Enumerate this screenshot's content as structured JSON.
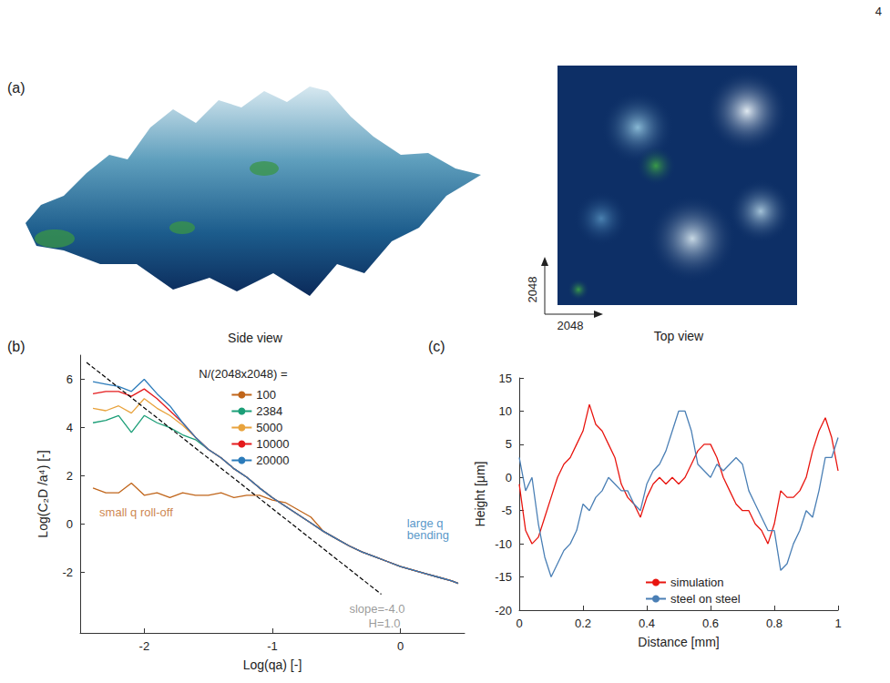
{
  "page_number": "4",
  "panel_a": {
    "panel_label": "(a)",
    "side_view_caption": "Side view",
    "top_view_caption": "Top view",
    "top_view_axes": [
      "2048",
      "2048"
    ]
  },
  "chart_data": [
    {
      "panel_label": "(b)",
      "type": "line",
      "x_label": "Log(qa) [-]",
      "y_label": "Log(C₂D /a⁴) [-]",
      "legend_title": "N/(2048x2048) =",
      "legend": "upper right",
      "grid": false,
      "xlim": [
        -2.5,
        0.5
      ],
      "xticks": [
        -2,
        -1,
        0
      ],
      "ylim": [
        -4.5,
        7
      ],
      "yticks": [
        -2,
        0,
        2,
        4,
        6
      ],
      "x": [
        -2.4,
        -2.3,
        -2.2,
        -2.1,
        -2.0,
        -1.9,
        -1.8,
        -1.7,
        -1.6,
        -1.5,
        -1.4,
        -1.3,
        -1.2,
        -1.1,
        -1.0,
        -0.9,
        -0.8,
        -0.7,
        -0.6,
        -0.5,
        -0.4,
        -0.3,
        -0.2,
        -0.1,
        0,
        0.1,
        0.2,
        0.3,
        0.4,
        0.45
      ],
      "series": [
        {
          "name": "100",
          "color": "#c0651a",
          "values": [
            1.5,
            1.3,
            1.3,
            1.7,
            1.2,
            1.3,
            1.1,
            1.3,
            1.2,
            1.2,
            1.3,
            1.1,
            1.2,
            1.2,
            1.0,
            0.9,
            0.6,
            0.3,
            -0.3,
            -0.6,
            -0.9,
            -1.15,
            -1.35,
            -1.55,
            -1.75,
            -1.9,
            -2.05,
            -2.2,
            -2.35,
            -2.45
          ]
        },
        {
          "name": "2384",
          "color": "#1b9e77",
          "values": [
            4.2,
            4.3,
            4.5,
            3.8,
            4.5,
            4.2,
            4.0,
            3.7,
            3.5,
            3.1,
            2.75,
            2.3,
            1.95,
            1.5,
            1.1,
            0.75,
            0.4,
            0.05,
            -0.3,
            -0.6,
            -0.9,
            -1.15,
            -1.35,
            -1.55,
            -1.75,
            -1.9,
            -2.05,
            -2.2,
            -2.35,
            -2.45
          ]
        },
        {
          "name": "5000",
          "color": "#e8a33d",
          "values": [
            4.8,
            4.7,
            4.9,
            4.6,
            5.2,
            4.8,
            4.5,
            4.1,
            3.6,
            3.1,
            2.75,
            2.3,
            1.95,
            1.5,
            1.1,
            0.75,
            0.4,
            0.05,
            -0.3,
            -0.6,
            -0.9,
            -1.15,
            -1.35,
            -1.55,
            -1.75,
            -1.9,
            -2.05,
            -2.2,
            -2.35,
            -2.45
          ]
        },
        {
          "name": "10000",
          "color": "#e41a1c",
          "values": [
            5.4,
            5.5,
            5.5,
            5.3,
            5.6,
            5.2,
            4.7,
            4.2,
            3.6,
            3.1,
            2.75,
            2.3,
            1.95,
            1.5,
            1.1,
            0.75,
            0.4,
            0.05,
            -0.3,
            -0.6,
            -0.9,
            -1.15,
            -1.35,
            -1.55,
            -1.75,
            -1.9,
            -2.05,
            -2.2,
            -2.35,
            -2.45
          ]
        },
        {
          "name": "20000",
          "color": "#2b7bba",
          "values": [
            5.9,
            5.8,
            5.7,
            5.5,
            6.0,
            5.4,
            4.9,
            4.2,
            3.6,
            3.1,
            2.75,
            2.3,
            1.95,
            1.5,
            1.1,
            0.75,
            0.4,
            0.05,
            -0.3,
            -0.6,
            -0.9,
            -1.15,
            -1.35,
            -1.55,
            -1.75,
            -1.9,
            -2.05,
            -2.2,
            -2.35,
            -2.45
          ]
        },
        {
          "color": "#000000",
          "line_style": "dashed",
          "x": [
            -2.45,
            -0.15
          ],
          "values": [
            6.7,
            -2.9
          ]
        }
      ],
      "annotations": [
        {
          "text": "small q roll-off",
          "x": -2.35,
          "y": 0.5,
          "color": "#c0651a"
        },
        {
          "text": "large q bending",
          "x": 0.05,
          "y": -0.2,
          "color": "#2b7bba"
        },
        {
          "text": "slope=-4.0",
          "x": -0.4,
          "y": -3.5,
          "color": "#7f7f7f"
        },
        {
          "text": "H=1.0",
          "x": -0.25,
          "y": -4.1,
          "color": "#7f7f7f"
        }
      ]
    },
    {
      "panel_label": "(c)",
      "type": "line",
      "x_label": "Distance [mm]",
      "y_label": "Height [μm]",
      "legend": "lower center",
      "grid": false,
      "xlim": [
        0,
        1
      ],
      "xticks": [
        0,
        0.2,
        0.4,
        0.6,
        0.8,
        1
      ],
      "ylim": [
        -20,
        15
      ],
      "yticks": [
        -20,
        -15,
        -10,
        -5,
        0,
        5,
        10,
        15
      ],
      "x": [
        0,
        0.02,
        0.04,
        0.06,
        0.08,
        0.1,
        0.12,
        0.14,
        0.16,
        0.18,
        0.2,
        0.22,
        0.24,
        0.26,
        0.28,
        0.3,
        0.32,
        0.34,
        0.36,
        0.38,
        0.4,
        0.42,
        0.44,
        0.46,
        0.48,
        0.5,
        0.52,
        0.54,
        0.56,
        0.58,
        0.6,
        0.62,
        0.64,
        0.66,
        0.68,
        0.7,
        0.72,
        0.74,
        0.76,
        0.78,
        0.8,
        0.82,
        0.84,
        0.86,
        0.88,
        0.9,
        0.92,
        0.94,
        0.96,
        0.98,
        1
      ],
      "series": [
        {
          "name": "simulation",
          "color": "#e8150f",
          "values": [
            -1,
            -8,
            -10,
            -9,
            -6,
            -3,
            0,
            2,
            3,
            5,
            7,
            11,
            8,
            7,
            5,
            3,
            -1,
            -3,
            -4,
            -6,
            -3,
            -1,
            0,
            -1,
            0,
            -1,
            0,
            2,
            4,
            5,
            5,
            3,
            0,
            -2,
            -4,
            -5,
            -5,
            -7,
            -8,
            -10,
            -7,
            -2,
            -3,
            -3,
            -2,
            0,
            4,
            7,
            9,
            6,
            1
          ]
        },
        {
          "name": "steel on steel",
          "color": "#4a7fb5",
          "values": [
            3,
            -2,
            0,
            -7,
            -12,
            -15,
            -13,
            -11,
            -10,
            -8,
            -4,
            -5,
            -3,
            -2,
            0,
            -1,
            -2,
            -2,
            -4,
            -5,
            -1,
            1,
            2,
            4,
            7,
            10,
            10,
            7,
            2,
            1,
            0,
            2,
            1,
            2,
            3,
            2,
            -2,
            -4,
            -6,
            -8,
            -8,
            -14,
            -13,
            -10,
            -8,
            -5,
            -6,
            -2,
            3,
            3,
            6
          ]
        }
      ]
    }
  ]
}
